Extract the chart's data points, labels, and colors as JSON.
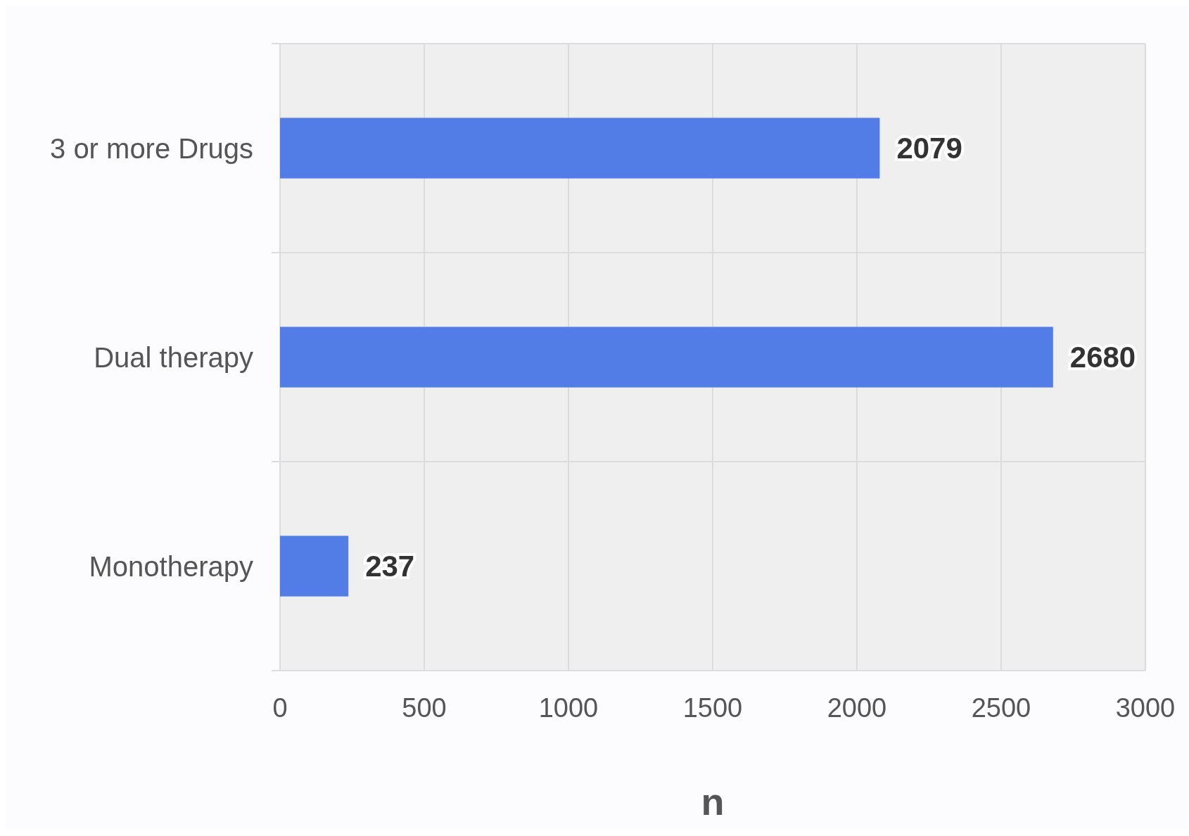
{
  "chart_data": {
    "type": "bar",
    "orientation": "horizontal",
    "xlabel": "n",
    "categories": [
      "3 or more Drugs",
      "Dual therapy",
      "Monotherapy"
    ],
    "values": [
      2079,
      2680,
      237
    ],
    "color": "#527de6",
    "xlim": [
      0,
      3000
    ],
    "xticks": [
      0,
      500,
      1000,
      1500,
      2000,
      2500,
      3000
    ],
    "grid": true,
    "data_labels": true
  }
}
